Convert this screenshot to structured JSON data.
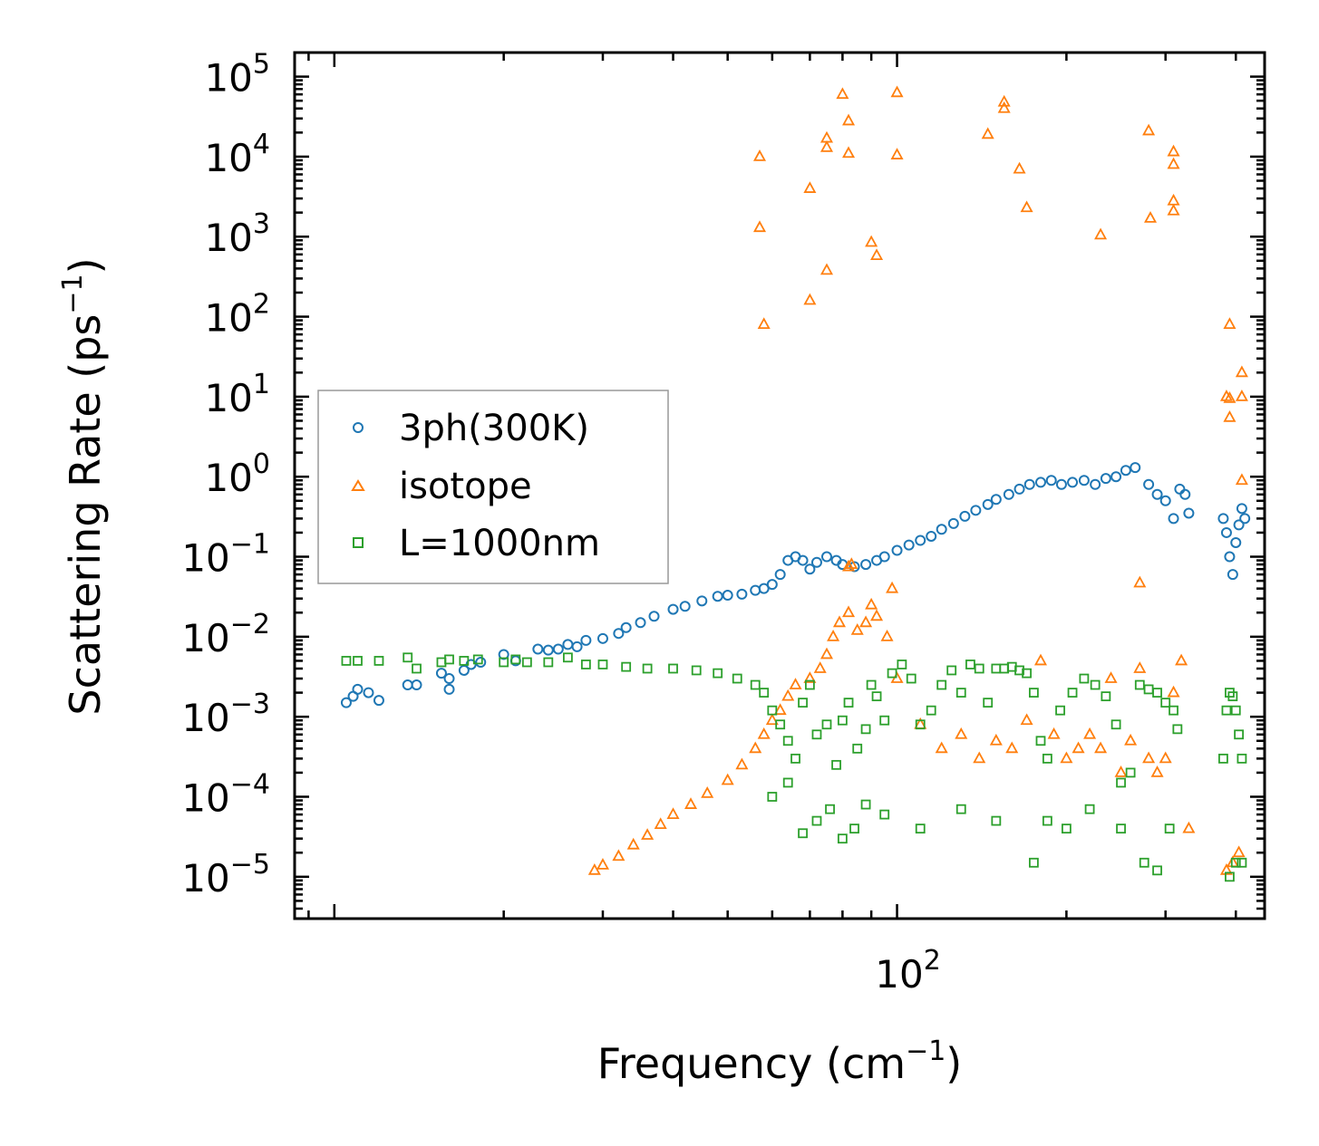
{
  "chart_data": {
    "type": "scatter",
    "title": "",
    "xlabel": "Frequency (cm",
    "xlabel_sup": "−1",
    "xlabel_end": ")",
    "ylabel": "Scattering Rate (ps",
    "ylabel_sup": "−1",
    "ylabel_end": ")",
    "xscale": "log",
    "yscale": "log",
    "xlim": [
      8.5,
      450
    ],
    "ylim": [
      3e-06,
      200000
    ],
    "x_tick_labels": [
      {
        "value": 100,
        "base": "10",
        "exp": "2"
      }
    ],
    "y_tick_labels": [
      {
        "value": 100000,
        "base": "10",
        "exp": "5"
      },
      {
        "value": 10000,
        "base": "10",
        "exp": "4"
      },
      {
        "value": 1000,
        "base": "10",
        "exp": "3"
      },
      {
        "value": 100,
        "base": "10",
        "exp": "2"
      },
      {
        "value": 10,
        "base": "10",
        "exp": "1"
      },
      {
        "value": 1,
        "base": "10",
        "exp": "0"
      },
      {
        "value": 0.1,
        "base": "10",
        "exp": "−1"
      },
      {
        "value": 0.01,
        "base": "10",
        "exp": "−2"
      },
      {
        "value": 0.001,
        "base": "10",
        "exp": "−3"
      },
      {
        "value": 0.0001,
        "base": "10",
        "exp": "−4"
      },
      {
        "value": 1e-05,
        "base": "10",
        "exp": "−5"
      }
    ],
    "legend_position": "center-left",
    "series": [
      {
        "name": "3ph(300K)",
        "marker": "circle",
        "color": "#1f77b4",
        "points": [
          [
            10.5,
            0.0015
          ],
          [
            10.8,
            0.0018
          ],
          [
            11,
            0.0022
          ],
          [
            11.5,
            0.002
          ],
          [
            12,
            0.0016
          ],
          [
            13.5,
            0.0025
          ],
          [
            14,
            0.0025
          ],
          [
            15.5,
            0.0035
          ],
          [
            16,
            0.0022
          ],
          [
            16,
            0.003
          ],
          [
            17,
            0.0038
          ],
          [
            17.5,
            0.0045
          ],
          [
            18.2,
            0.0048
          ],
          [
            20,
            0.006
          ],
          [
            21,
            0.005
          ],
          [
            23,
            0.007
          ],
          [
            24,
            0.0068
          ],
          [
            25,
            0.007
          ],
          [
            26,
            0.008
          ],
          [
            27,
            0.0075
          ],
          [
            28,
            0.009
          ],
          [
            30,
            0.0095
          ],
          [
            32,
            0.011
          ],
          [
            33,
            0.013
          ],
          [
            35,
            0.015
          ],
          [
            37,
            0.018
          ],
          [
            40,
            0.022
          ],
          [
            42,
            0.024
          ],
          [
            45,
            0.028
          ],
          [
            48,
            0.032
          ],
          [
            50,
            0.033
          ],
          [
            53,
            0.034
          ],
          [
            56,
            0.038
          ],
          [
            58,
            0.04
          ],
          [
            60,
            0.045
          ],
          [
            62,
            0.06
          ],
          [
            64,
            0.09
          ],
          [
            66,
            0.1
          ],
          [
            68,
            0.09
          ],
          [
            70,
            0.07
          ],
          [
            72,
            0.085
          ],
          [
            75,
            0.1
          ],
          [
            78,
            0.09
          ],
          [
            80,
            0.08
          ],
          [
            84,
            0.075
          ],
          [
            88,
            0.08
          ],
          [
            92,
            0.09
          ],
          [
            95,
            0.1
          ],
          [
            100,
            0.12
          ],
          [
            105,
            0.14
          ],
          [
            110,
            0.16
          ],
          [
            115,
            0.18
          ],
          [
            120,
            0.22
          ],
          [
            126,
            0.26
          ],
          [
            132,
            0.32
          ],
          [
            138,
            0.38
          ],
          [
            145,
            0.45
          ],
          [
            150,
            0.52
          ],
          [
            158,
            0.6
          ],
          [
            165,
            0.7
          ],
          [
            172,
            0.8
          ],
          [
            180,
            0.85
          ],
          [
            188,
            0.9
          ],
          [
            196,
            0.8
          ],
          [
            205,
            0.85
          ],
          [
            215,
            0.9
          ],
          [
            225,
            0.8
          ],
          [
            235,
            0.95
          ],
          [
            245,
            1.0
          ],
          [
            255,
            1.2
          ],
          [
            265,
            1.3
          ],
          [
            280,
            0.8
          ],
          [
            290,
            0.6
          ],
          [
            300,
            0.5
          ],
          [
            310,
            0.3
          ],
          [
            318,
            0.7
          ],
          [
            325,
            0.6
          ],
          [
            330,
            0.35
          ],
          [
            380,
            0.3
          ],
          [
            385,
            0.2
          ],
          [
            390,
            0.1
          ],
          [
            395,
            0.06
          ],
          [
            400,
            0.15
          ],
          [
            405,
            0.25
          ],
          [
            410,
            0.4
          ],
          [
            415,
            0.3
          ]
        ]
      },
      {
        "name": "isotope",
        "marker": "triangle",
        "color": "#ff7f0e",
        "points": [
          [
            29,
            1.2e-05
          ],
          [
            30,
            1.4e-05
          ],
          [
            32,
            1.8e-05
          ],
          [
            34,
            2.5e-05
          ],
          [
            36,
            3.3e-05
          ],
          [
            38,
            4.5e-05
          ],
          [
            40,
            6e-05
          ],
          [
            43,
            8e-05
          ],
          [
            46,
            0.00011
          ],
          [
            50,
            0.00016
          ],
          [
            53,
            0.00025
          ],
          [
            56,
            0.0004
          ],
          [
            58,
            0.0006
          ],
          [
            60,
            0.0009
          ],
          [
            62,
            0.0012
          ],
          [
            64,
            0.0018
          ],
          [
            66,
            0.0025
          ],
          [
            70,
            0.003
          ],
          [
            73,
            0.004
          ],
          [
            75,
            0.006
          ],
          [
            77,
            0.01
          ],
          [
            79,
            0.015
          ],
          [
            82,
            0.02
          ],
          [
            85,
            0.012
          ],
          [
            88,
            0.015
          ],
          [
            90,
            0.025
          ],
          [
            92,
            0.018
          ],
          [
            96,
            0.01
          ],
          [
            100,
            0.003
          ],
          [
            110,
            0.0008
          ],
          [
            120,
            0.0004
          ],
          [
            130,
            0.0006
          ],
          [
            140,
            0.0003
          ],
          [
            150,
            0.0005
          ],
          [
            160,
            0.0004
          ],
          [
            170,
            0.0009
          ],
          [
            180,
            0.005
          ],
          [
            190,
            0.0006
          ],
          [
            200,
            0.0003
          ],
          [
            210,
            0.0004
          ],
          [
            220,
            0.0006
          ],
          [
            230,
            0.0004
          ],
          [
            240,
            0.003
          ],
          [
            250,
            0.0002
          ],
          [
            260,
            0.0005
          ],
          [
            270,
            0.004
          ],
          [
            280,
            0.0003
          ],
          [
            290,
            0.0002
          ],
          [
            300,
            0.0003
          ],
          [
            310,
            0.002
          ],
          [
            320,
            0.005
          ],
          [
            330,
            4e-05
          ],
          [
            385,
            1.2e-05
          ],
          [
            395,
            1.5e-05
          ],
          [
            405,
            2e-05
          ],
          [
            57,
            10000
          ],
          [
            57,
            1300
          ],
          [
            58,
            80
          ],
          [
            70,
            4000
          ],
          [
            70,
            160
          ],
          [
            75,
            17000
          ],
          [
            75,
            13000
          ],
          [
            75,
            380
          ],
          [
            80,
            60000
          ],
          [
            82,
            28000
          ],
          [
            82,
            11000
          ],
          [
            90,
            850
          ],
          [
            92,
            580
          ],
          [
            100,
            63000
          ],
          [
            100,
            10500
          ],
          [
            145,
            19000
          ],
          [
            155,
            48000
          ],
          [
            155,
            40000
          ],
          [
            165,
            7000
          ],
          [
            170,
            2300
          ],
          [
            230,
            1050
          ],
          [
            280,
            21000
          ],
          [
            282,
            1700
          ],
          [
            310,
            11500
          ],
          [
            310,
            8000
          ],
          [
            310,
            2800
          ],
          [
            310,
            2100
          ],
          [
            390,
            80
          ],
          [
            385,
            10
          ],
          [
            390,
            9.5
          ],
          [
            390,
            5.5
          ],
          [
            410,
            20
          ],
          [
            410,
            10
          ],
          [
            410,
            0.9
          ],
          [
            83,
            0.08
          ],
          [
            82,
            0.075
          ],
          [
            98,
            0.04
          ],
          [
            270,
            0.047
          ]
        ]
      },
      {
        "name": "L=1000nm",
        "marker": "square",
        "color": "#2ca02c",
        "points": [
          [
            10.5,
            0.005
          ],
          [
            11,
            0.005
          ],
          [
            12,
            0.005
          ],
          [
            13.5,
            0.0055
          ],
          [
            14,
            0.004
          ],
          [
            15.5,
            0.0048
          ],
          [
            16,
            0.0052
          ],
          [
            17,
            0.005
          ],
          [
            18,
            0.0052
          ],
          [
            20,
            0.0048
          ],
          [
            21,
            0.0052
          ],
          [
            22,
            0.0048
          ],
          [
            24,
            0.0048
          ],
          [
            26,
            0.0055
          ],
          [
            28,
            0.0045
          ],
          [
            30,
            0.0045
          ],
          [
            33,
            0.0042
          ],
          [
            36,
            0.004
          ],
          [
            40,
            0.004
          ],
          [
            44,
            0.0038
          ],
          [
            48,
            0.0035
          ],
          [
            52,
            0.003
          ],
          [
            56,
            0.0025
          ],
          [
            58,
            0.002
          ],
          [
            60,
            0.0012
          ],
          [
            62,
            0.0008
          ],
          [
            64,
            0.0005
          ],
          [
            66,
            0.0003
          ],
          [
            68,
            0.0015
          ],
          [
            70,
            0.0025
          ],
          [
            72,
            0.0006
          ],
          [
            75,
            0.0008
          ],
          [
            78,
            0.00025
          ],
          [
            80,
            0.0009
          ],
          [
            82,
            0.0015
          ],
          [
            85,
            0.0004
          ],
          [
            88,
            0.0007
          ],
          [
            90,
            0.0025
          ],
          [
            92,
            0.0018
          ],
          [
            95,
            0.0009
          ],
          [
            98,
            0.0035
          ],
          [
            102,
            0.0045
          ],
          [
            106,
            0.003
          ],
          [
            110,
            0.0008
          ],
          [
            115,
            0.0012
          ],
          [
            120,
            0.0025
          ],
          [
            125,
            0.0038
          ],
          [
            130,
            0.002
          ],
          [
            135,
            0.0045
          ],
          [
            140,
            0.004
          ],
          [
            145,
            0.0015
          ],
          [
            150,
            0.004
          ],
          [
            155,
            0.004
          ],
          [
            160,
            0.0042
          ],
          [
            165,
            0.0038
          ],
          [
            170,
            0.0035
          ],
          [
            175,
            0.002
          ],
          [
            180,
            0.0005
          ],
          [
            185,
            0.0003
          ],
          [
            195,
            0.0012
          ],
          [
            205,
            0.002
          ],
          [
            215,
            0.003
          ],
          [
            225,
            0.0025
          ],
          [
            235,
            0.0018
          ],
          [
            245,
            0.0008
          ],
          [
            250,
            0.00015
          ],
          [
            260,
            0.0002
          ],
          [
            270,
            0.0025
          ],
          [
            280,
            0.0022
          ],
          [
            290,
            0.002
          ],
          [
            300,
            0.0015
          ],
          [
            310,
            0.0012
          ],
          [
            315,
            0.0007
          ],
          [
            380,
            0.0003
          ],
          [
            385,
            0.0012
          ],
          [
            390,
            0.002
          ],
          [
            395,
            0.0018
          ],
          [
            400,
            0.0012
          ],
          [
            405,
            0.0006
          ],
          [
            410,
            0.0003
          ],
          [
            60,
            0.0001
          ],
          [
            64,
            0.00015
          ],
          [
            68,
            3.5e-05
          ],
          [
            72,
            5e-05
          ],
          [
            76,
            7e-05
          ],
          [
            80,
            3e-05
          ],
          [
            84,
            4e-05
          ],
          [
            88,
            8e-05
          ],
          [
            95,
            6e-05
          ],
          [
            110,
            4e-05
          ],
          [
            130,
            7e-05
          ],
          [
            150,
            5e-05
          ],
          [
            175,
            1.5e-05
          ],
          [
            185,
            5e-05
          ],
          [
            200,
            4e-05
          ],
          [
            220,
            7e-05
          ],
          [
            250,
            4e-05
          ],
          [
            275,
            1.5e-05
          ],
          [
            290,
            1.2e-05
          ],
          [
            305,
            4e-05
          ],
          [
            390,
            1e-05
          ],
          [
            400,
            1.5e-05
          ],
          [
            410,
            1.5e-05
          ]
        ]
      }
    ]
  }
}
